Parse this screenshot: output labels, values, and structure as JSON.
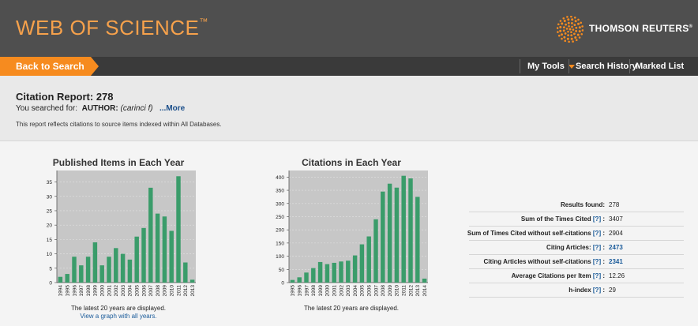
{
  "header": {
    "logo_text": "WEB OF SCIENCE",
    "logo_tm": "™",
    "vendor": "THOMSON REUTERS",
    "vendor_tm": "®"
  },
  "nav": {
    "back_label": "Back to Search",
    "my_tools": "My Tools",
    "search_history": "Search History",
    "marked_list": "Marked List"
  },
  "report": {
    "title": "Citation Report: 278",
    "searched_prefix": "You searched for:",
    "searched_field": "AUTHOR:",
    "searched_query": "(carinci f)",
    "more_link": "...More",
    "note": "This report reflects citations to source items indexed within All Databases."
  },
  "colors": {
    "bar": "#3a9c6a",
    "plot_bg": "#c7c7c7",
    "accent": "#f68b1f",
    "header": "#4f4f4f"
  },
  "chart_data": [
    {
      "type": "bar",
      "title": "Published Items in Each Year",
      "categories": [
        "1994",
        "1995",
        "1996",
        "1997",
        "1998",
        "1999",
        "2000",
        "2001",
        "2002",
        "2003",
        "2004",
        "2005",
        "2006",
        "2007",
        "2008",
        "2009",
        "2010",
        "2011",
        "2012",
        "2013"
      ],
      "values": [
        2,
        3,
        9,
        6,
        9,
        14,
        6,
        9,
        12,
        10,
        8,
        16,
        19,
        33,
        24,
        23,
        18,
        37,
        7,
        1
      ],
      "yticks": [
        0,
        5,
        10,
        15,
        20,
        25,
        30,
        35
      ],
      "ylim": [
        0,
        39
      ],
      "caption": "The latest 20 years are displayed.",
      "caption_link": "View a graph with all years."
    },
    {
      "type": "bar",
      "title": "Citations in Each Year",
      "categories": [
        "1995",
        "1996",
        "1997",
        "1998",
        "1999",
        "2000",
        "2001",
        "2002",
        "2003",
        "2004",
        "2005",
        "2006",
        "2007",
        "2008",
        "2009",
        "2010",
        "2011",
        "2012",
        "2013",
        "2014"
      ],
      "values": [
        10,
        20,
        38,
        55,
        78,
        70,
        75,
        80,
        83,
        103,
        145,
        175,
        240,
        345,
        375,
        360,
        405,
        395,
        325,
        15
      ],
      "yticks": [
        0,
        50,
        100,
        150,
        200,
        250,
        300,
        350,
        400
      ],
      "ylim": [
        0,
        425
      ],
      "caption": "The latest 20 years are displayed."
    }
  ],
  "stats": [
    {
      "label": "Results found:",
      "help": "",
      "value": "278",
      "link": false
    },
    {
      "label": "Sum of the Times Cited",
      "help": "[?]",
      "value": "3407",
      "link": false
    },
    {
      "label": "Sum of Times Cited without self-citations",
      "help": "[?]",
      "value": "2904",
      "link": false
    },
    {
      "label": "Citing Articles:",
      "help": "[?]",
      "value": "2473",
      "link": true
    },
    {
      "label": "Citing Articles without self-citations",
      "help": "[?]",
      "value": "2341",
      "link": true
    },
    {
      "label": "Average Citations per Item",
      "help": "[?]",
      "value": "12.26",
      "link": false
    },
    {
      "label": "h-index",
      "help": "[?]",
      "value": "29",
      "link": false
    }
  ]
}
